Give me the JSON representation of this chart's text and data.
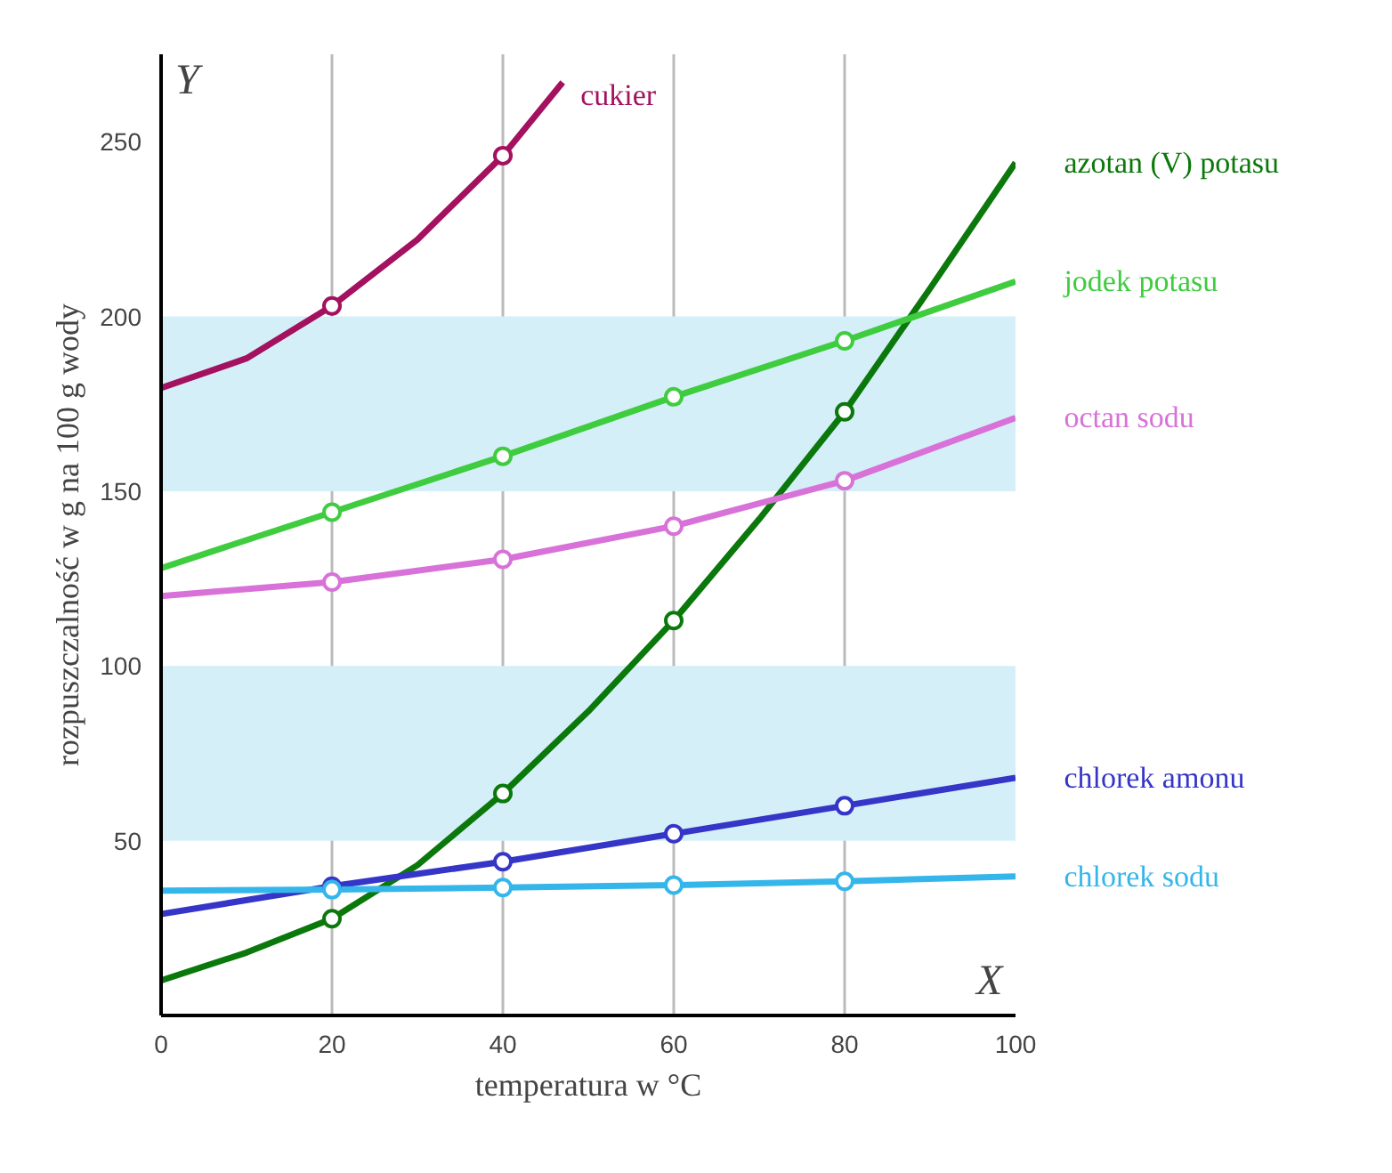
{
  "chart_data": {
    "type": "line",
    "xlabel": "temperatura w °C",
    "ylabel": "rozpuszczalność w g na 100 g wody",
    "annotations": [
      "Y",
      "X"
    ],
    "xlim": [
      0,
      100
    ],
    "ylim": [
      0,
      275
    ],
    "xticks": [
      0,
      20,
      40,
      60,
      80,
      100
    ],
    "yticks": [
      50,
      100,
      150,
      200,
      250
    ],
    "grid": "x",
    "line_style": "solid",
    "bands": [
      {
        "axis": "y",
        "from": 50,
        "to": 100,
        "color": "#d5eff8"
      },
      {
        "axis": "y",
        "from": 150,
        "to": 200,
        "color": "#d5eff8"
      }
    ],
    "series": [
      {
        "name": "cukier",
        "color": "#a3115f",
        "x": [
          0,
          10,
          20,
          30,
          40,
          47
        ],
        "values": [
          179.5,
          188,
          203,
          222,
          246,
          267
        ]
      },
      {
        "name": "azotan (V) potasu",
        "color": "#0b780b",
        "x": [
          0,
          10,
          20,
          30,
          40,
          50,
          60,
          70,
          80,
          90,
          100
        ],
        "values": [
          10,
          18,
          27.7,
          43,
          63.5,
          87,
          113,
          142,
          172.7,
          208,
          244
        ]
      },
      {
        "name": "jodek potasu",
        "color": "#3fcc3f",
        "x": [
          0,
          20,
          40,
          60,
          80,
          100
        ],
        "values": [
          128,
          144,
          160,
          177,
          193,
          210
        ]
      },
      {
        "name": "octan sodu",
        "color": "#d872d8",
        "x": [
          0,
          20,
          40,
          60,
          80,
          100
        ],
        "values": [
          120,
          124,
          130.5,
          140,
          153,
          171
        ]
      },
      {
        "name": "chlorek amonu",
        "color": "#3535c8",
        "x": [
          0,
          20,
          40,
          60,
          80,
          100
        ],
        "values": [
          29,
          37,
          44,
          52,
          60,
          68
        ]
      },
      {
        "name": "chlorek sodu",
        "color": "#35b6ea",
        "x": [
          0,
          20,
          40,
          60,
          80,
          100
        ],
        "values": [
          35.7,
          36,
          36.6,
          37.3,
          38.4,
          39.8
        ]
      },
      {
        "type": "scatter",
        "marker": "circle",
        "color": "#a3115f",
        "x": [
          20,
          40
        ],
        "values": [
          203,
          246
        ]
      },
      {
        "type": "scatter",
        "marker": "circle",
        "color": "#0b780b",
        "x": [
          20,
          40,
          60,
          80
        ],
        "values": [
          27.7,
          63.5,
          113,
          172.7
        ]
      },
      {
        "type": "scatter",
        "marker": "circle",
        "color": "#3fcc3f",
        "x": [
          20,
          40,
          60,
          80
        ],
        "values": [
          144,
          160,
          177,
          193
        ]
      },
      {
        "type": "scatter",
        "marker": "circle",
        "color": "#d872d8",
        "x": [
          20,
          40,
          60,
          80
        ],
        "values": [
          124,
          130.5,
          140,
          153
        ]
      },
      {
        "type": "scatter",
        "marker": "circle",
        "color": "#3535c8",
        "x": [
          20,
          40,
          60,
          80
        ],
        "values": [
          37,
          44,
          52,
          60
        ]
      },
      {
        "type": "scatter",
        "marker": "circle",
        "color": "#35b6ea",
        "x": [
          20,
          40,
          60,
          80
        ],
        "values": [
          36,
          36.6,
          37.3,
          38.4
        ]
      }
    ]
  }
}
